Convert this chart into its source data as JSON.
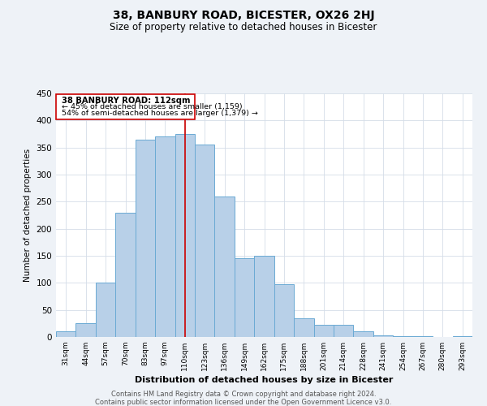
{
  "title": "38, BANBURY ROAD, BICESTER, OX26 2HJ",
  "subtitle": "Size of property relative to detached houses in Bicester",
  "xlabel": "Distribution of detached houses by size in Bicester",
  "ylabel": "Number of detached properties",
  "bar_labels": [
    "31sqm",
    "44sqm",
    "57sqm",
    "70sqm",
    "83sqm",
    "97sqm",
    "110sqm",
    "123sqm",
    "136sqm",
    "149sqm",
    "162sqm",
    "175sqm",
    "188sqm",
    "201sqm",
    "214sqm",
    "228sqm",
    "241sqm",
    "254sqm",
    "267sqm",
    "280sqm",
    "293sqm"
  ],
  "bar_values": [
    10,
    25,
    100,
    230,
    365,
    370,
    375,
    355,
    260,
    145,
    150,
    97,
    35,
    22,
    22,
    10,
    3,
    1,
    1,
    0,
    1
  ],
  "bar_color": "#b8d0e8",
  "bar_edge_color": "#6aaad4",
  "marker_index": 6,
  "marker_label": "38 BANBURY ROAD: 112sqm",
  "annotation_line1": "← 45% of detached houses are smaller (1,159)",
  "annotation_line2": "54% of semi-detached houses are larger (1,379) →",
  "marker_color": "#cc0000",
  "ylim": [
    0,
    450
  ],
  "yticks": [
    0,
    50,
    100,
    150,
    200,
    250,
    300,
    350,
    400,
    450
  ],
  "footer1": "Contains HM Land Registry data © Crown copyright and database right 2024.",
  "footer2": "Contains public sector information licensed under the Open Government Licence v3.0.",
  "bg_color": "#eef2f7",
  "plot_bg_color": "#ffffff",
  "grid_color": "#d5dde8"
}
